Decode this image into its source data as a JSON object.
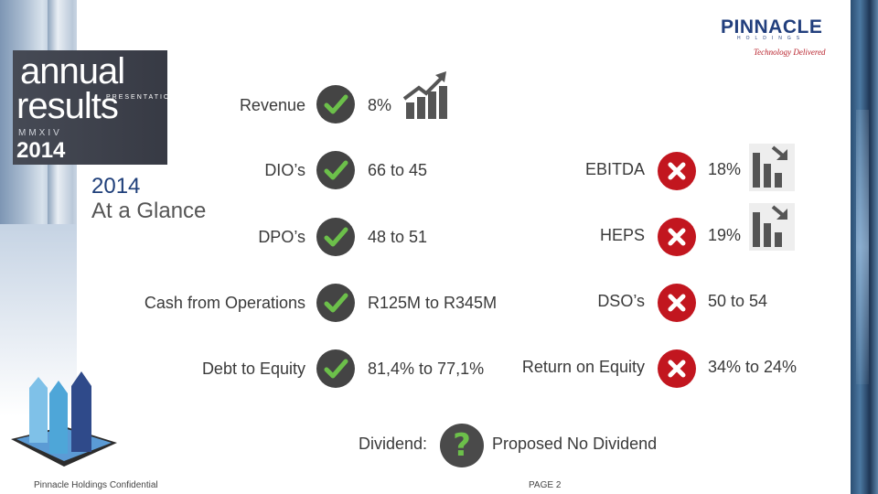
{
  "branding": {
    "annual_word": "annual",
    "results_word": "results",
    "presentation_word": "PRESENTATION",
    "roman_year": "MMXIV",
    "year": "2014",
    "logo_name": "PINNACLE",
    "logo_sub": "HOLDINGS",
    "logo_tagline": "Technology Delivered"
  },
  "heading": {
    "year": "2014",
    "title": "At a Glance"
  },
  "positive_metrics": [
    {
      "label": "Revenue",
      "value": "8%",
      "status": "check"
    },
    {
      "label": "DIO’s",
      "value": "66 to 45",
      "status": "check"
    },
    {
      "label": "DPO’s",
      "value": "48 to 51",
      "status": "check"
    },
    {
      "label": "Cash from Operations",
      "value": "R125M to R345M",
      "status": "check"
    },
    {
      "label": "Debt to Equity",
      "value": "81,4% to 77,1%",
      "status": "check"
    }
  ],
  "negative_metrics": [
    {
      "label": "EBITDA",
      "value": "18%",
      "status": "cross"
    },
    {
      "label": "HEPS",
      "value": "19%",
      "status": "cross"
    },
    {
      "label": "DSO’s",
      "value": "50 to 54",
      "status": "cross"
    },
    {
      "label": "Return on Equity",
      "value": "34% to 24%",
      "status": "cross"
    }
  ],
  "dividend": {
    "label": "Dividend:",
    "value": "Proposed No Dividend",
    "status": "question"
  },
  "icons": {
    "check": "check-icon",
    "cross": "cross-icon",
    "question": "question-icon",
    "trend_up": "trend-up-icon",
    "trend_down": "trend-down-icon"
  },
  "colors": {
    "check_bg": "#444444",
    "check_mark": "#6cc04a",
    "cross_bg": "#c2161f",
    "brand_blue": "#223f7d"
  },
  "footer": {
    "confidential": "Pinnacle Holdings Confidential",
    "page": "PAGE 2"
  }
}
